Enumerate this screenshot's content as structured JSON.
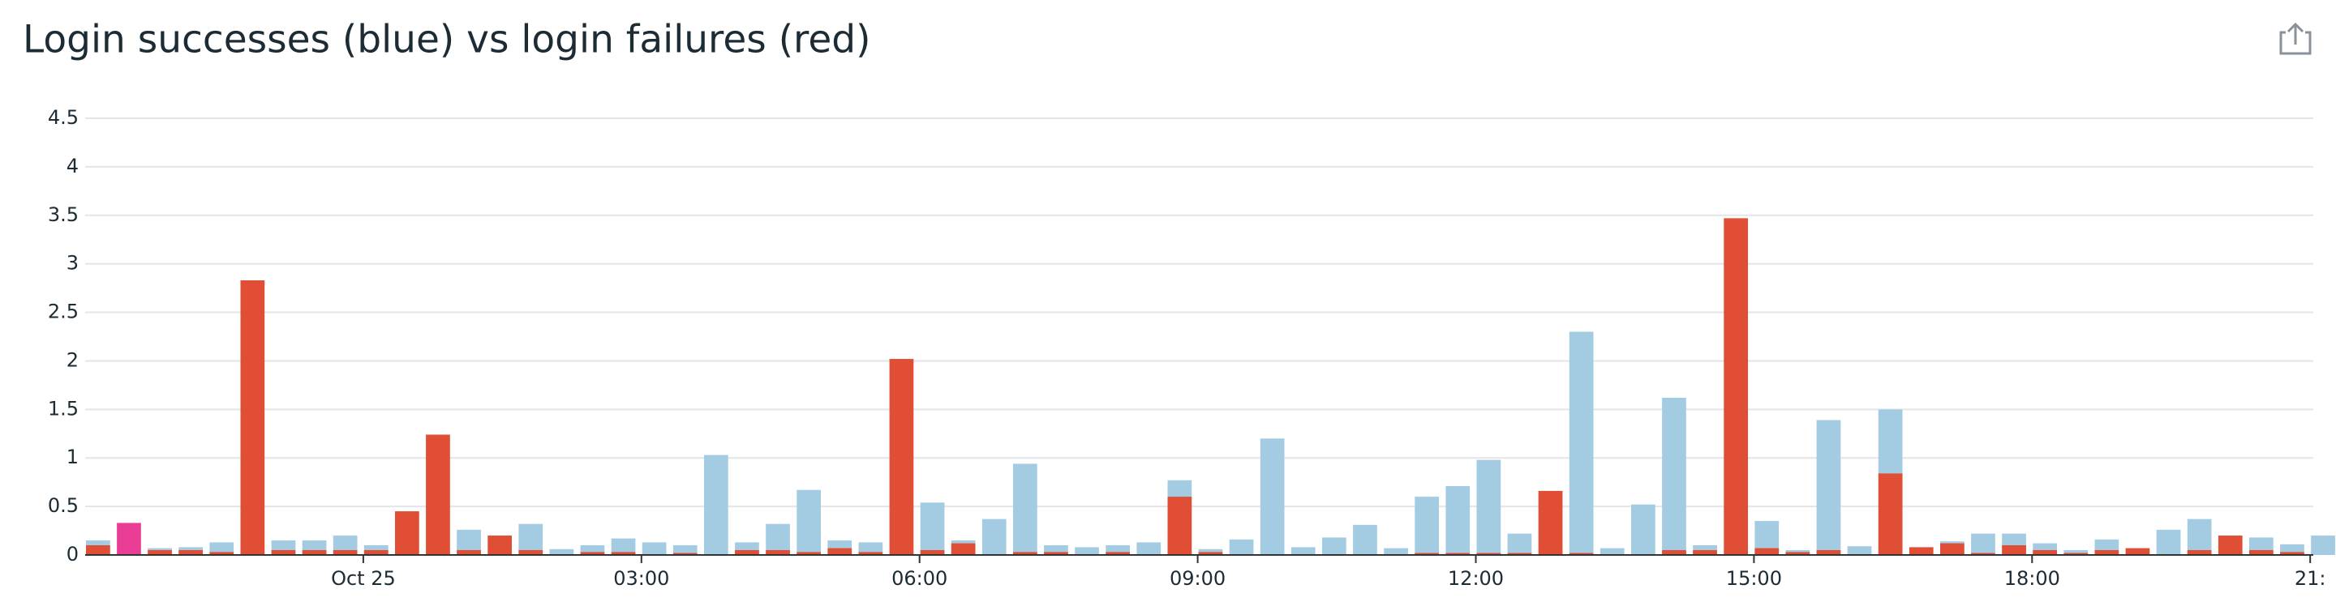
{
  "chart_data": {
    "type": "bar",
    "title": "Login successes (blue) vs login failures (red)",
    "x": [
      -180,
      -160,
      -140,
      -120,
      -100,
      -80,
      -60,
      -40,
      -20,
      0,
      20,
      40,
      60,
      80,
      100,
      120,
      140,
      160,
      180,
      200,
      220,
      240,
      260,
      280,
      300,
      320,
      340,
      360,
      380,
      400,
      420,
      440,
      460,
      480,
      500,
      520,
      540,
      560,
      580,
      600,
      620,
      640,
      660,
      680,
      700,
      720,
      740,
      760,
      780,
      800,
      820,
      840,
      860,
      880,
      900,
      920,
      940,
      960,
      980,
      1000,
      1020,
      1040,
      1060,
      1080,
      1100,
      1120,
      1140,
      1160,
      1180,
      1200,
      1220,
      1240,
      1260
    ],
    "series": [
      {
        "color": "#a3cce3",
        "values": [
          0.15,
          null,
          0.07,
          0.08,
          0.13,
          null,
          0.15,
          0.15,
          0.2,
          0.1,
          null,
          null,
          0.26,
          null,
          0.32,
          0.06,
          0.1,
          0.17,
          0.13,
          0.1,
          1.03,
          0.13,
          0.32,
          0.67,
          0.15,
          0.13,
          null,
          0.54,
          0.15,
          0.37,
          0.94,
          0.1,
          0.08,
          0.1,
          0.13,
          0.77,
          0.06,
          0.16,
          1.2,
          0.08,
          0.18,
          0.31,
          0.07,
          0.6,
          0.71,
          0.98,
          0.22,
          null,
          2.3,
          0.07,
          0.52,
          1.62,
          0.1,
          null,
          0.35,
          0.05,
          1.39,
          0.09,
          1.5,
          null,
          0.14,
          0.22,
          0.22,
          0.12,
          0.05,
          0.16,
          null,
          0.26,
          0.37,
          null,
          0.18,
          0.11,
          0.2
        ]
      },
      {
        "color": "#e04e35",
        "values": [
          0.1,
          null,
          0.05,
          0.05,
          0.03,
          2.83,
          0.05,
          0.05,
          0.05,
          0.05,
          0.45,
          1.24,
          0.05,
          0.2,
          0.05,
          null,
          0.03,
          0.03,
          null,
          0.02,
          null,
          0.05,
          0.05,
          0.03,
          0.07,
          0.03,
          2.02,
          0.05,
          0.12,
          null,
          0.03,
          0.03,
          null,
          0.03,
          null,
          0.6,
          0.03,
          null,
          null,
          null,
          null,
          null,
          null,
          0.02,
          0.02,
          0.02,
          0.02,
          0.66,
          0.02,
          null,
          null,
          0.05,
          0.05,
          3.47,
          0.07,
          0.03,
          0.05,
          null,
          0.84,
          0.08,
          0.12,
          0.02,
          0.1,
          0.05,
          0.02,
          0.05,
          0.07,
          null,
          0.05,
          0.2,
          0.05,
          0.03,
          null
        ]
      },
      {
        "color": "#ea3d96",
        "values": [
          null,
          0.33,
          null,
          null,
          null,
          null,
          null,
          null,
          null,
          null,
          null,
          null,
          null,
          null,
          null,
          null,
          null,
          null,
          null,
          null,
          null,
          null,
          null,
          null,
          null,
          null,
          null,
          null,
          null,
          null,
          null,
          null,
          null,
          null,
          null,
          null,
          null,
          null,
          null,
          null,
          null,
          null,
          null,
          null,
          null,
          null,
          null,
          null,
          null,
          null,
          null,
          null,
          null,
          null,
          null,
          null,
          null,
          null,
          null,
          null,
          null,
          null,
          null,
          null,
          null,
          null,
          null,
          null,
          null,
          null,
          null,
          null,
          null
        ]
      }
    ],
    "xlim": [
      -180,
      1262
    ],
    "xticks": [
      {
        "value": 0,
        "label": "Oct 25"
      },
      {
        "value": 180,
        "label": "03:00"
      },
      {
        "value": 360,
        "label": "06:00"
      },
      {
        "value": 540,
        "label": "09:00"
      },
      {
        "value": 720,
        "label": "12:00"
      },
      {
        "value": 900,
        "label": "15:00"
      },
      {
        "value": 1080,
        "label": "18:00"
      },
      {
        "value": 1260,
        "label": "21:"
      }
    ],
    "ylim": [
      0,
      4.5
    ],
    "yticks": [
      0,
      0.5,
      1,
      1.5,
      2,
      2.5,
      3,
      3.5,
      4,
      4.5
    ],
    "grid": true
  }
}
